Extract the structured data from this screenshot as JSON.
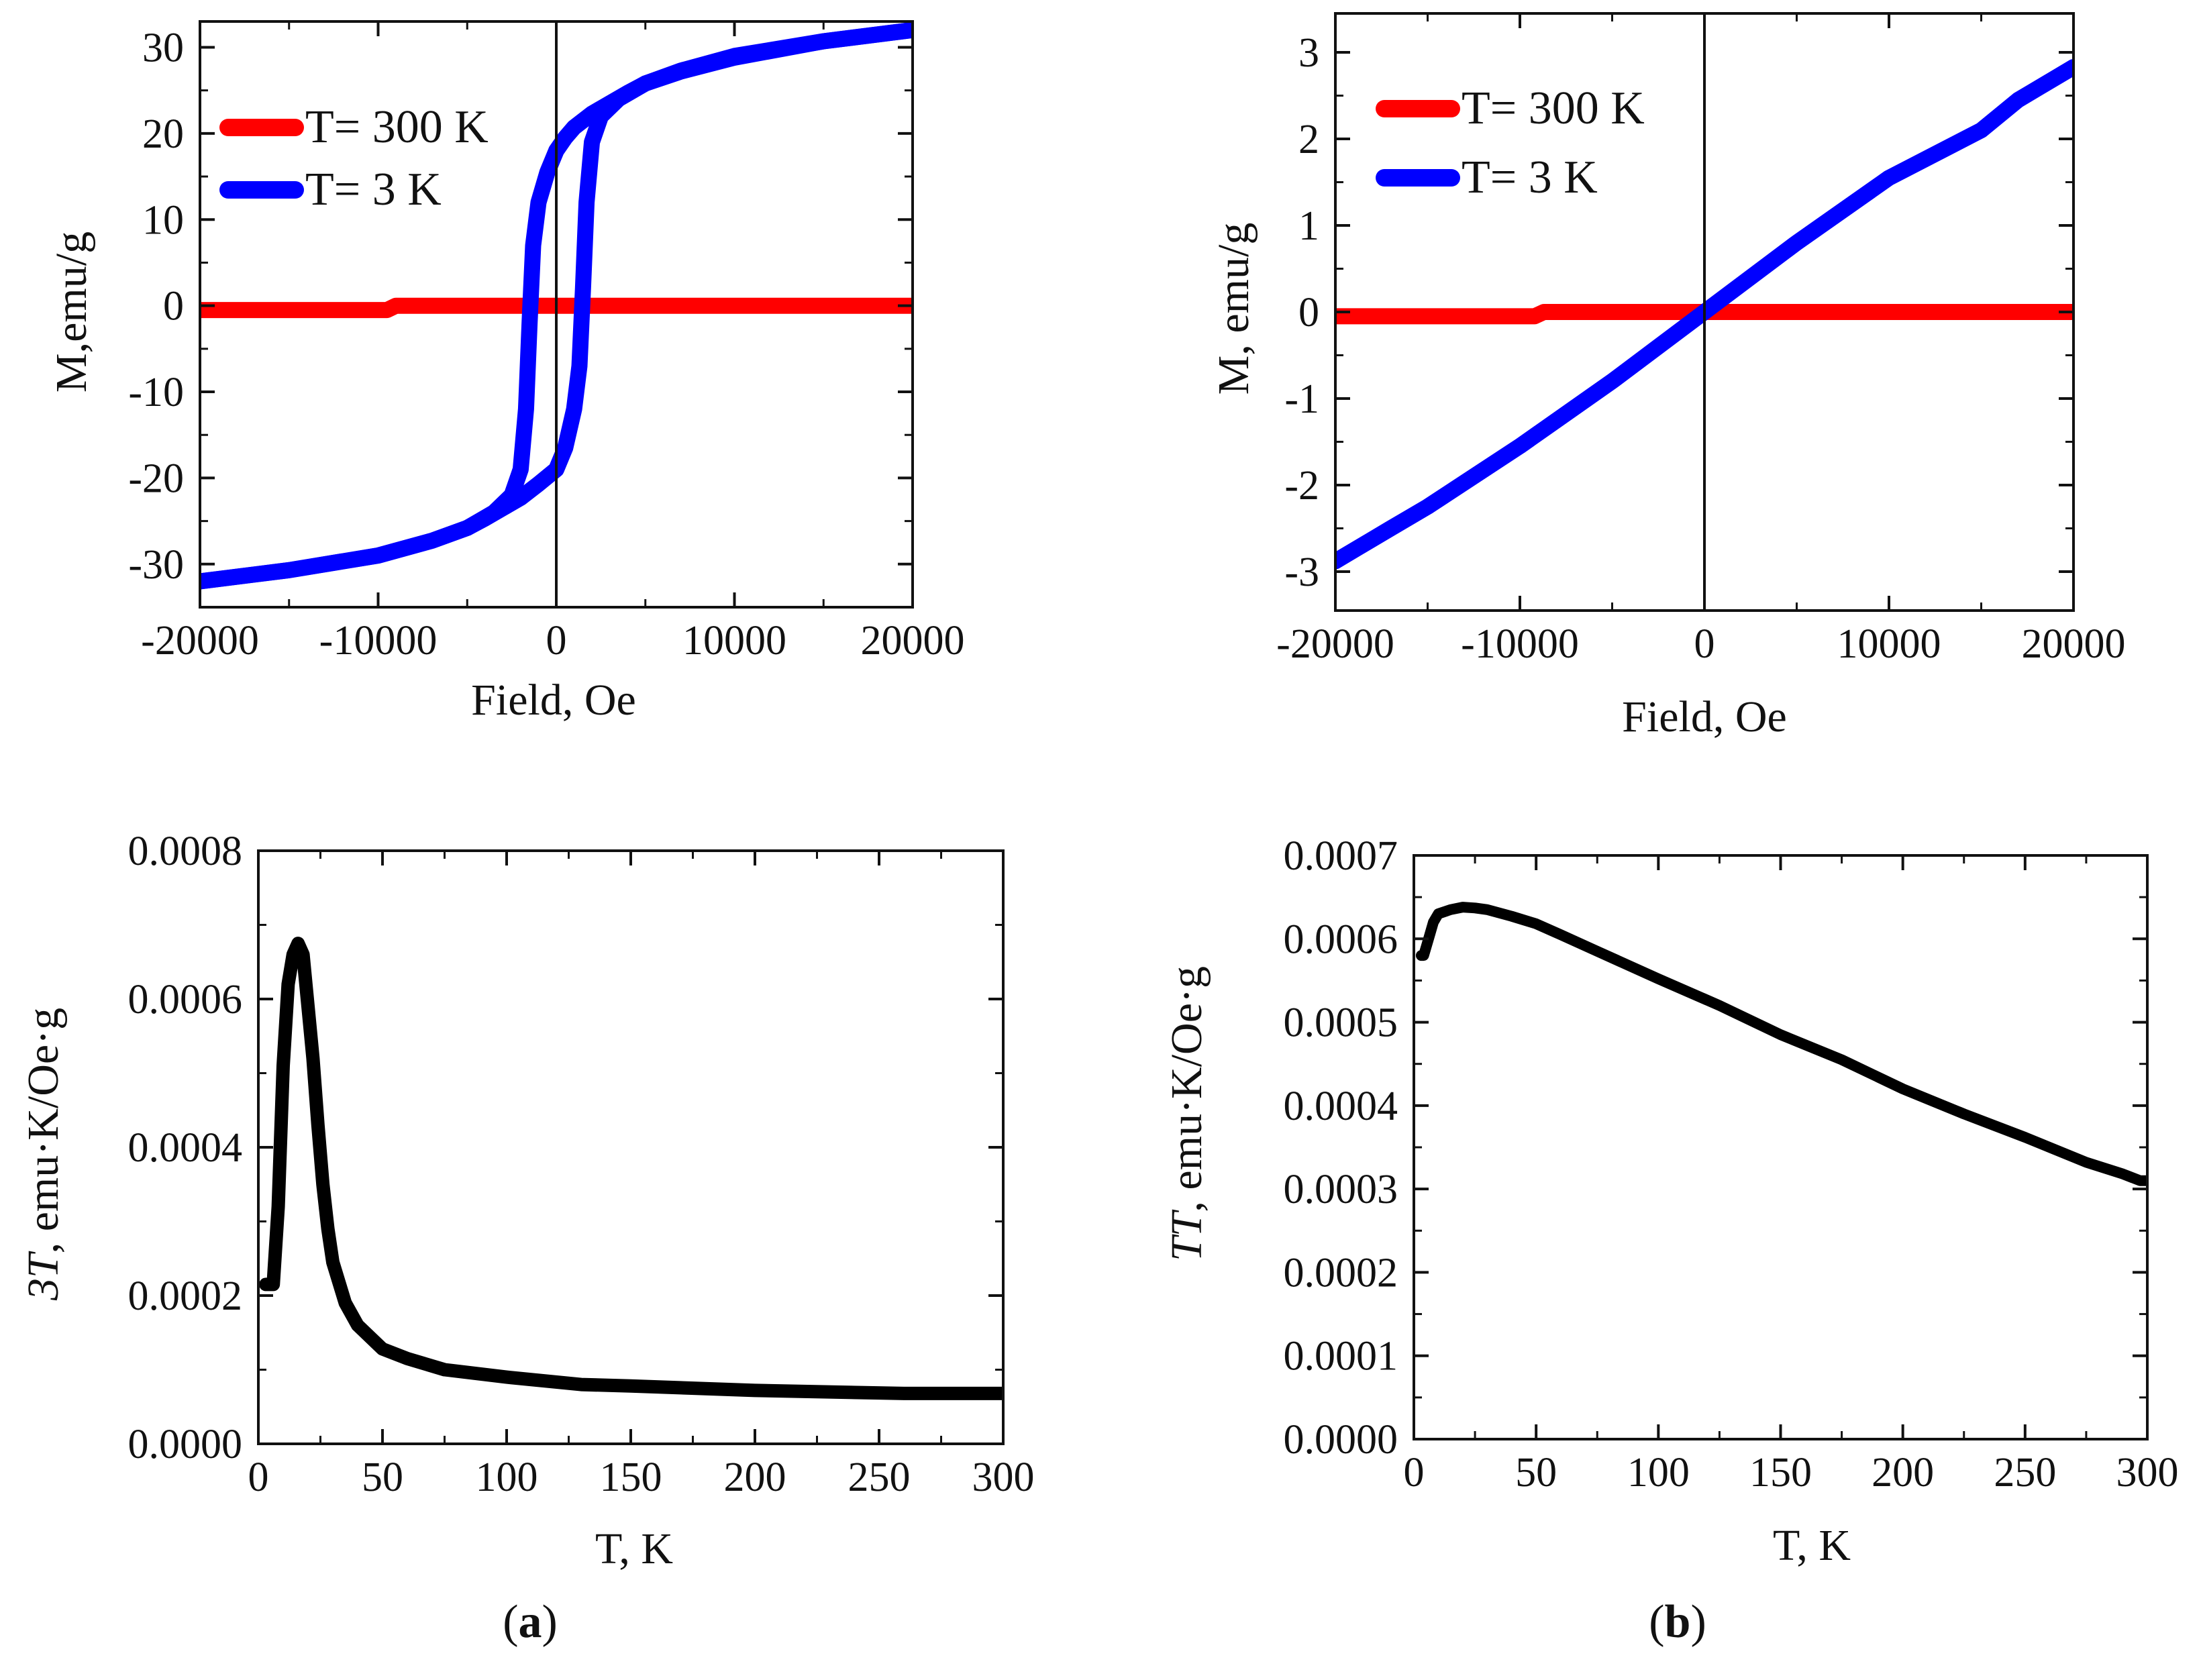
{
  "figure": {
    "panel_labels": [
      {
        "open": "(",
        "letter": "a",
        "close": ")"
      },
      {
        "open": "(",
        "letter": "b",
        "close": ")"
      }
    ]
  },
  "colors": {
    "red_series": "#ff0000",
    "blue_series": "#0000ff",
    "black_series": "#000000",
    "axis": "#111111"
  },
  "chart_data": [
    {
      "id": "top-left",
      "type": "line",
      "title": "",
      "xlabel": "Field, Oe",
      "ylabel": "M,emu/g",
      "xlim": [
        -20000,
        20000
      ],
      "ylim": [
        -35,
        33
      ],
      "xticks": [
        -20000,
        -10000,
        0,
        10000,
        20000
      ],
      "xtick_labels": [
        "-20000",
        "-10000",
        "0",
        "10000",
        "20000"
      ],
      "yticks": [
        -30,
        -20,
        -10,
        0,
        10,
        20,
        30
      ],
      "ytick_labels": [
        "-30",
        "-20",
        "-10",
        "0",
        "10",
        "20",
        "30"
      ],
      "zero_line": true,
      "legend": {
        "placement": "top-left",
        "entries": [
          "T= 300 K",
          "T= 3 K"
        ]
      },
      "series": [
        {
          "name": "T= 300 K",
          "color": "#ff0000",
          "x": [
            -20000,
            -9500,
            -9000,
            20000
          ],
          "y": [
            -0.5,
            -0.5,
            0,
            0
          ]
        },
        {
          "name": "T= 3 K",
          "color": "#0000ff",
          "x": [
            -20000,
            -15000,
            -10000,
            -7000,
            -5000,
            -3500,
            -2500,
            -2000,
            -1700,
            -1500,
            -1300,
            -1000,
            -500,
            0,
            500,
            1000,
            2000,
            3000,
            4000,
            5000,
            7000,
            10000,
            15000,
            20000
          ],
          "y": [
            -32,
            -30.7,
            -29,
            -27.3,
            -25.8,
            -24,
            -22,
            -19,
            -12,
            -2,
            7,
            12,
            15.5,
            18,
            19.5,
            20.7,
            22.3,
            23.5,
            24.7,
            25.8,
            27.2,
            28.8,
            30.7,
            32
          ]
        },
        {
          "name": "T= 3 K (ascending branch)",
          "color": "#0000ff",
          "x": [
            -20000,
            -15000,
            -10000,
            -7000,
            -5000,
            -4000,
            -3000,
            -2000,
            -1000,
            0,
            500,
            1000,
            1300,
            1500,
            1700,
            2000,
            2500,
            3500,
            5000,
            7000,
            10000,
            15000,
            20000
          ],
          "y": [
            -32,
            -30.7,
            -29,
            -27.3,
            -25.8,
            -24.7,
            -23.5,
            -22.3,
            -20.7,
            -19,
            -16.5,
            -12,
            -7,
            2,
            12,
            19,
            22,
            24,
            25.8,
            27.3,
            29,
            30.7,
            32
          ]
        }
      ]
    },
    {
      "id": "top-right",
      "type": "line",
      "title": "",
      "xlabel": "Field, Oe",
      "ylabel": "M, emu/g",
      "xlim": [
        -20000,
        20000
      ],
      "ylim": [
        -3.45,
        3.45
      ],
      "xticks": [
        -20000,
        -10000,
        0,
        10000,
        20000
      ],
      "xtick_labels": [
        "-20000",
        "-10000",
        "0",
        "10000",
        "20000"
      ],
      "yticks": [
        -3,
        -2,
        -1,
        0,
        1,
        2,
        3
      ],
      "ytick_labels": [
        "-3",
        "-2",
        "-1",
        "0",
        "1",
        "2",
        "3"
      ],
      "zero_line": true,
      "legend": {
        "placement": "top-left",
        "entries": [
          "T= 300 K",
          "T= 3 K"
        ]
      },
      "series": [
        {
          "name": "T= 300 K",
          "color": "#ff0000",
          "x": [
            -20000,
            -9200,
            -8700,
            20000
          ],
          "y": [
            -0.05,
            -0.05,
            0,
            0
          ]
        },
        {
          "name": "T= 3 K",
          "color": "#0000ff",
          "x": [
            -20000,
            -17000,
            -15000,
            -10000,
            -5000,
            0,
            5000,
            10000,
            15000,
            17000,
            20000
          ],
          "y": [
            -2.88,
            -2.5,
            -2.25,
            -1.55,
            -0.8,
            0,
            0.8,
            1.55,
            2.1,
            2.45,
            2.83
          ]
        }
      ]
    },
    {
      "id": "bottom-left",
      "type": "line",
      "title": "",
      "xlabel": "T, K",
      "ylabel_italic": "3T",
      "ylabel_rest": ", emu·K/Oe·g",
      "xlim": [
        0,
        300
      ],
      "ylim": [
        0,
        0.0008
      ],
      "xticks": [
        0,
        50,
        100,
        150,
        200,
        250,
        300
      ],
      "xtick_labels": [
        "0",
        "50",
        "100",
        "150",
        "200",
        "250",
        "300"
      ],
      "yticks": [
        0,
        0.0002,
        0.0004,
        0.0006,
        0.0008
      ],
      "ytick_labels": [
        "0.0000",
        "0.0002",
        "0.0004",
        "0.0006",
        "0.0008"
      ],
      "series": [
        {
          "name": "3T",
          "color": "#000000",
          "x": [
            3,
            6,
            8,
            10,
            12,
            14,
            16,
            18,
            20,
            22,
            24,
            26,
            28,
            30,
            35,
            40,
            50,
            60,
            75,
            100,
            130,
            150,
            200,
            260,
            300
          ],
          "y": [
            0.000215,
            0.000215,
            0.00032,
            0.00051,
            0.00062,
            0.00066,
            0.000675,
            0.00066,
            0.00059,
            0.00052,
            0.00043,
            0.00035,
            0.00029,
            0.000245,
            0.00019,
            0.00016,
            0.000128,
            0.000115,
            0.0001,
            9e-05,
            8e-05,
            7.8e-05,
            7.2e-05,
            6.8e-05,
            6.8e-05
          ]
        }
      ]
    },
    {
      "id": "bottom-right",
      "type": "line",
      "title": "",
      "xlabel": "T, K",
      "ylabel_italic": "TT",
      "ylabel_rest": ", emu·K/Oe·g",
      "xlim": [
        0,
        300
      ],
      "ylim": [
        0,
        0.0007
      ],
      "xticks": [
        0,
        50,
        100,
        150,
        200,
        250,
        300
      ],
      "xtick_labels": [
        "0",
        "50",
        "100",
        "150",
        "200",
        "250",
        "300"
      ],
      "yticks": [
        0,
        0.0001,
        0.0002,
        0.0003,
        0.0004,
        0.0005,
        0.0006,
        0.0007
      ],
      "ytick_labels": [
        "0.0000",
        "0.0001",
        "0.0002",
        "0.0003",
        "0.0004",
        "0.0005",
        "0.0006",
        "0.0007"
      ],
      "series": [
        {
          "name": "TT",
          "color": "#000000",
          "x": [
            3,
            4,
            6,
            8,
            10,
            15,
            20,
            25,
            30,
            40,
            50,
            60,
            75,
            100,
            125,
            150,
            175,
            200,
            225,
            250,
            275,
            290,
            297,
            300
          ],
          "y": [
            0.00058,
            0.00058,
            0.0006,
            0.00062,
            0.00063,
            0.000635,
            0.000638,
            0.000637,
            0.000635,
            0.000627,
            0.000618,
            0.000605,
            0.000585,
            0.000552,
            0.00052,
            0.000485,
            0.000455,
            0.00042,
            0.00039,
            0.000362,
            0.000332,
            0.000318,
            0.00031,
            0.00031
          ]
        }
      ]
    }
  ]
}
